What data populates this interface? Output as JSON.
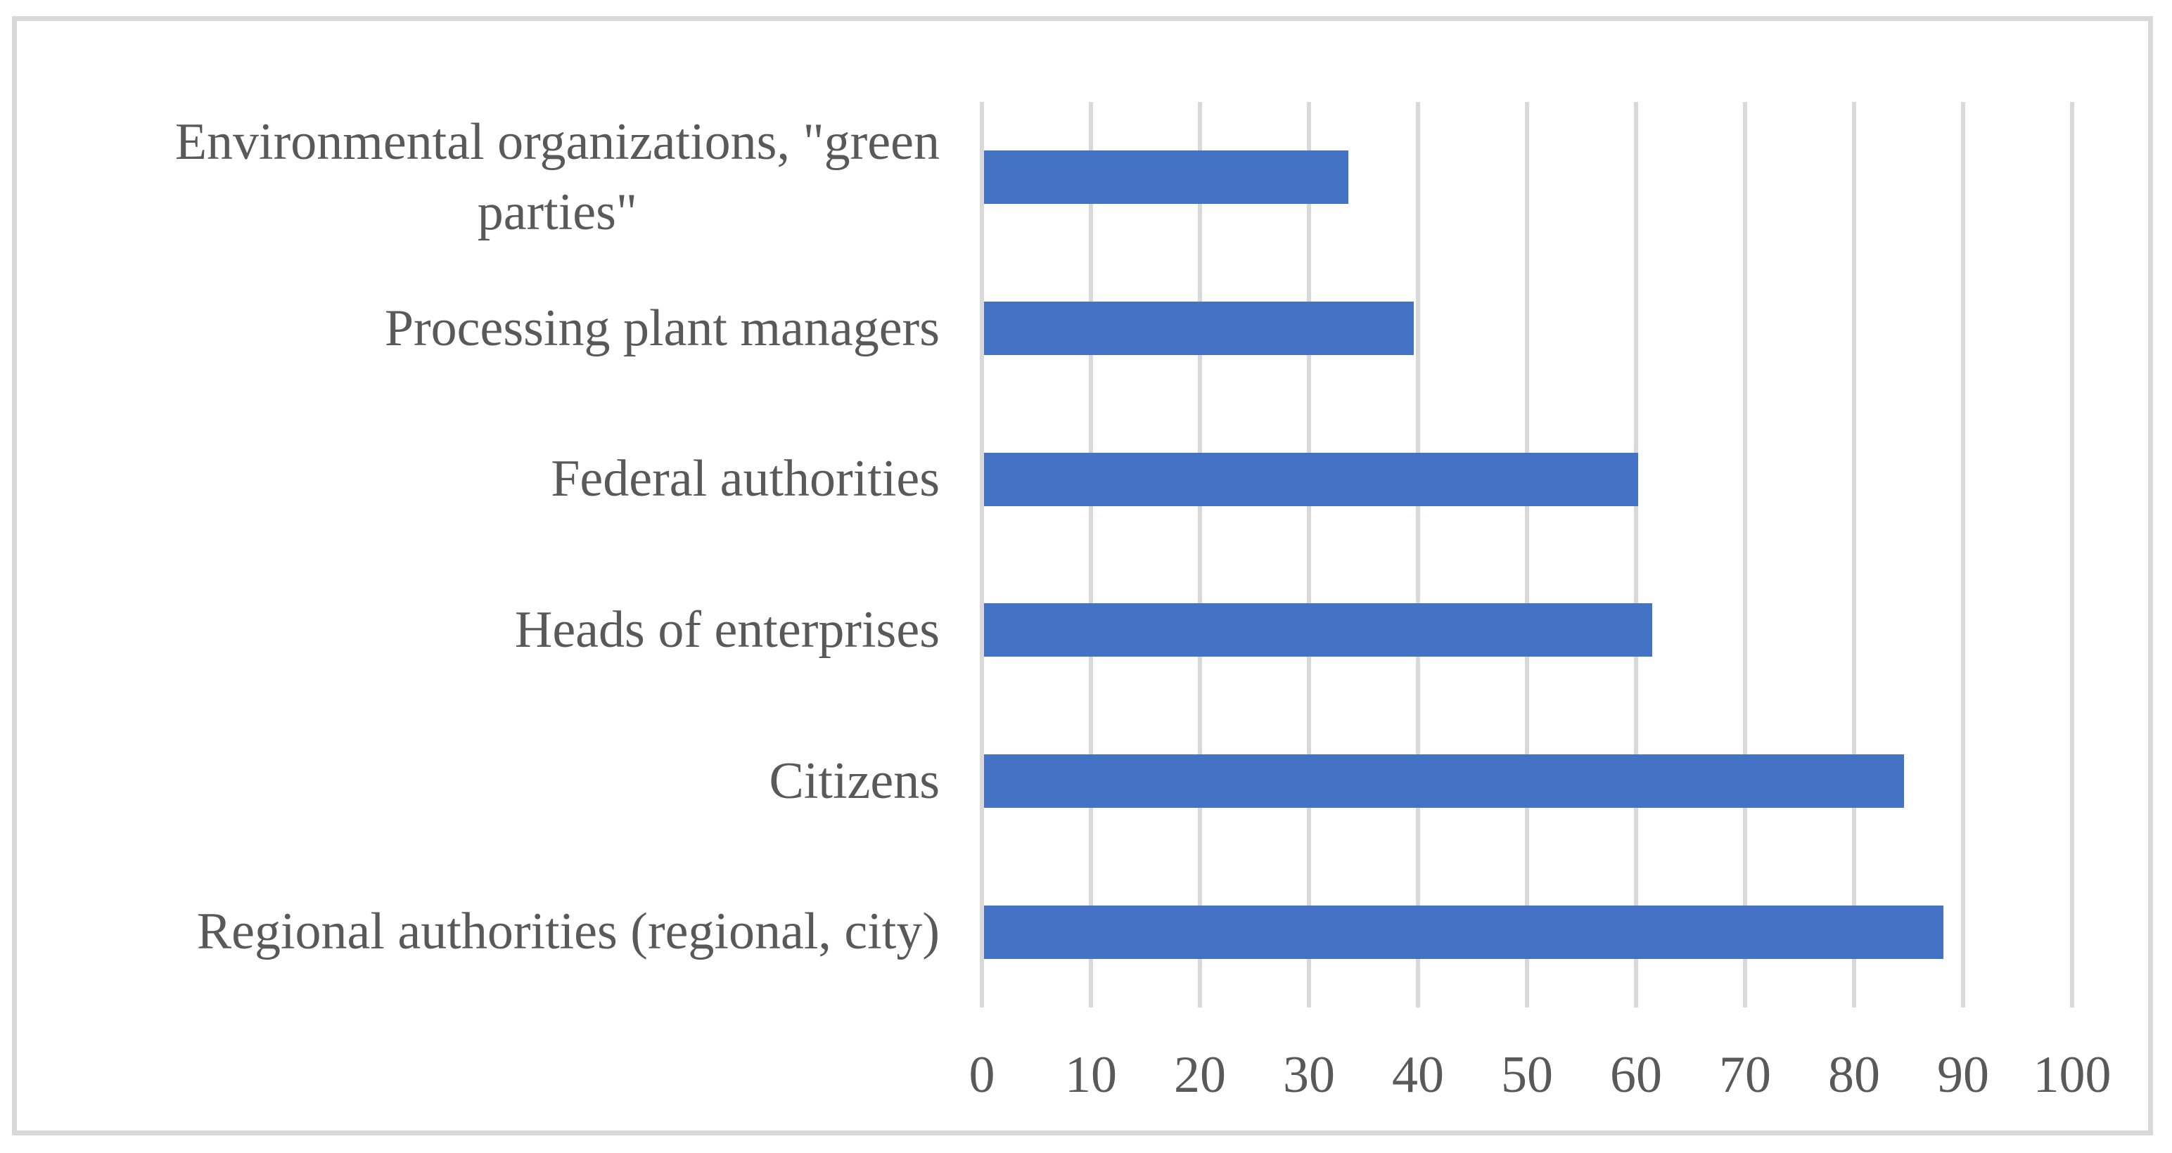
{
  "chart_data": {
    "type": "bar",
    "orientation": "horizontal",
    "title": "",
    "xlabel": "",
    "ylabel": "",
    "categories": [
      "Environmental organizations, \"green parties\"",
      "Processing plant managers",
      "Federal authorities",
      "Heads of enterprises",
      "Citizens",
      "Regional authorities (regional, city)"
    ],
    "category_wrap": [
      [
        "Environmental organizations, \"green",
        "parties\""
      ],
      [
        "Processing plant managers"
      ],
      [
        "Federal authorities"
      ],
      [
        "Heads of enterprises"
      ],
      [
        "Citizens"
      ],
      [
        "Regional authorities (regional, city)"
      ]
    ],
    "values": [
      33.4,
      39.4,
      60,
      61.3,
      84.4,
      88
    ],
    "xlim": [
      0,
      100
    ],
    "x_ticks": [
      0,
      10,
      20,
      30,
      40,
      50,
      60,
      70,
      80,
      90,
      100
    ],
    "grid": true,
    "legend": false,
    "axis_order_note": "categories listed top-to-bottom as displayed"
  },
  "colors": {
    "bar": "#4472C4",
    "gridline": "#D9D9D9",
    "frame": "#D9D9D9",
    "text": "#595959",
    "background": "#FFFFFF"
  }
}
